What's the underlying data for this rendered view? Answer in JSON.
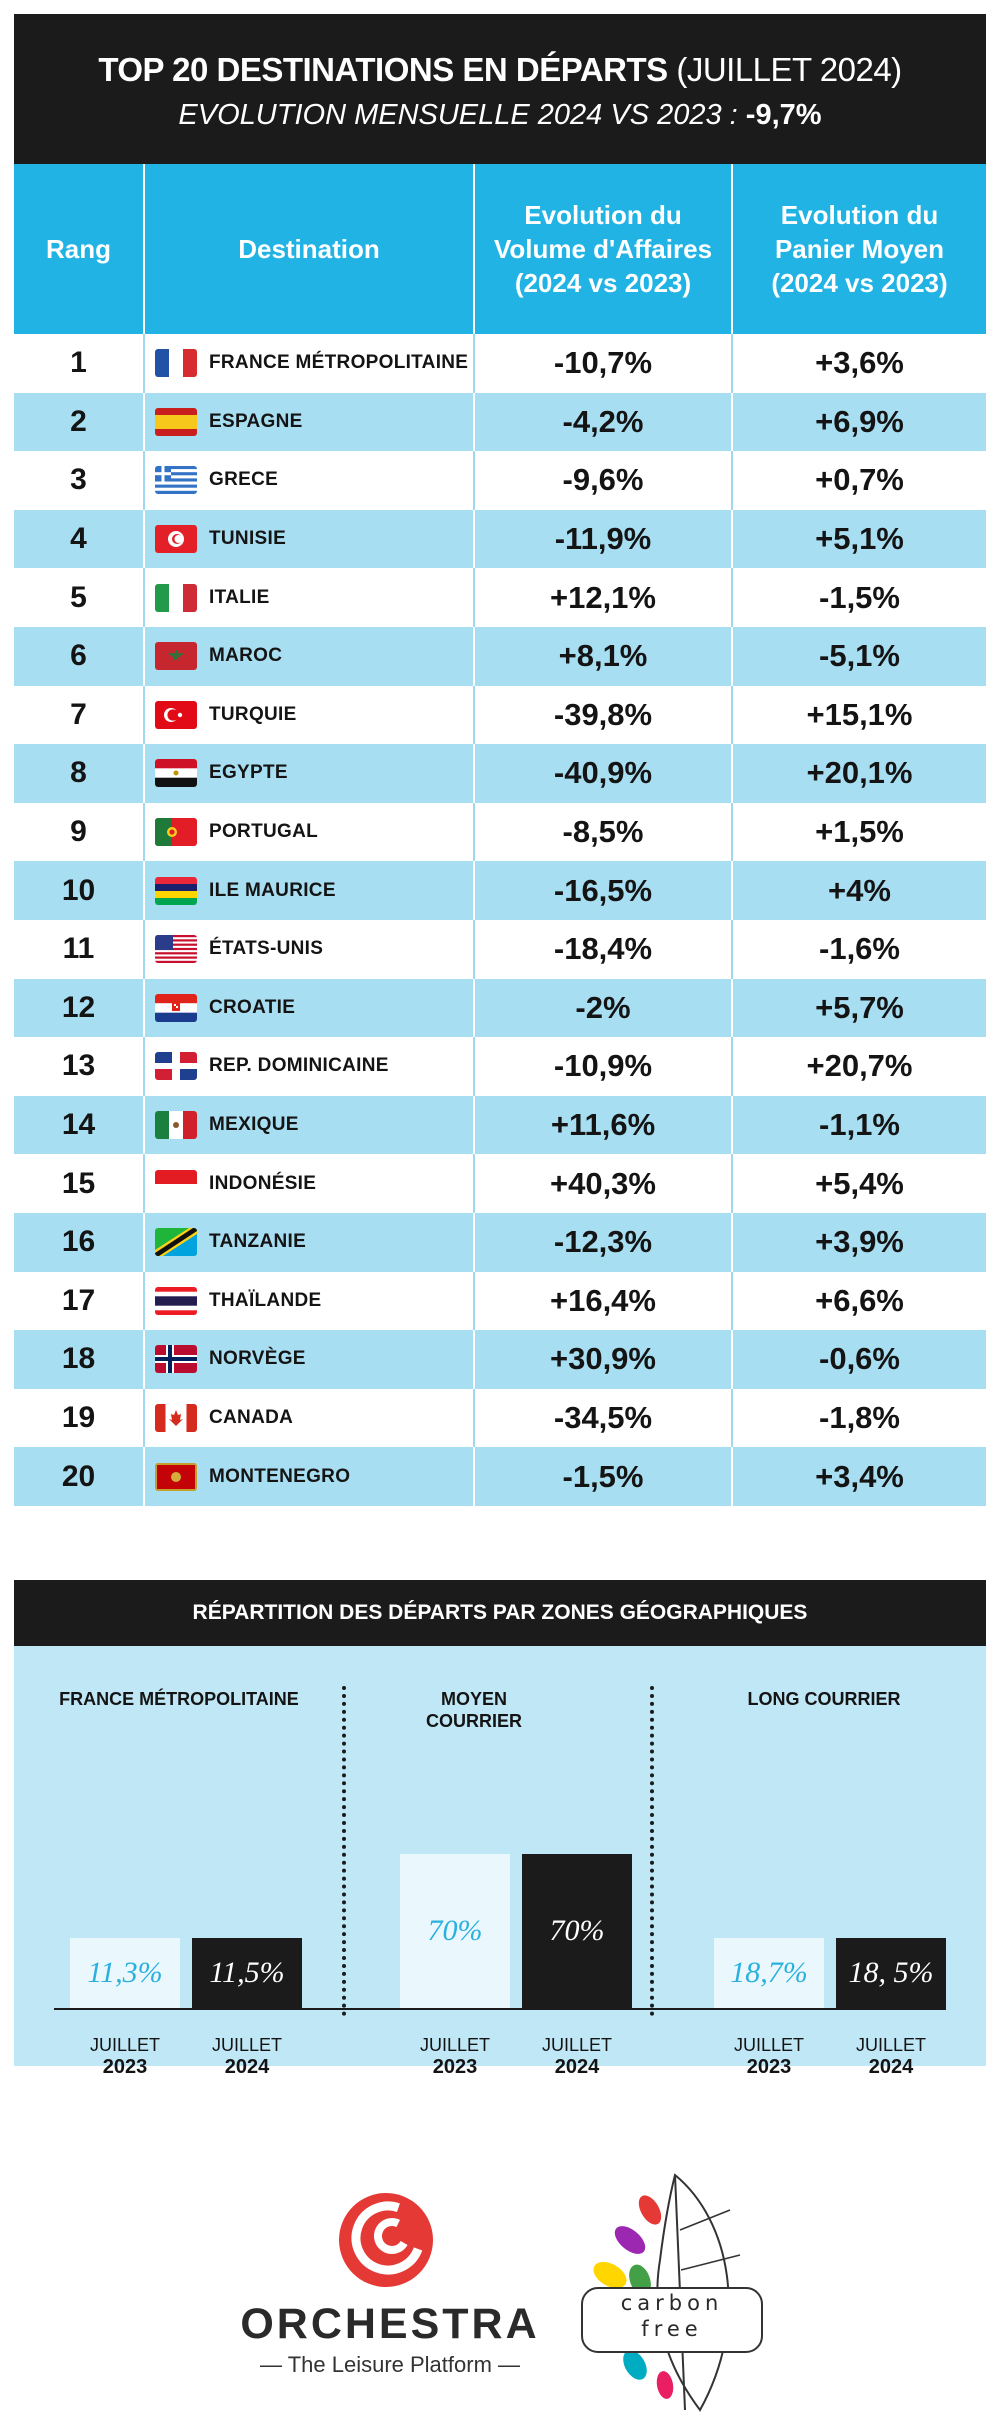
{
  "header": {
    "title_main": "TOP 20 DESTINATIONS EN DÉPARTS",
    "title_period": "(JUILLET 2024)",
    "subtitle_text": "EVOLUTION MENSUELLE 2024 VS 2023 :",
    "subtitle_value": "-9,7%"
  },
  "table": {
    "columns": [
      "Rang",
      "Destination",
      "Evolution du Volume d'Affaires (2024 vs 2023)",
      "Evolution du Panier Moyen (2024 vs 2023)"
    ],
    "rows": [
      {
        "rank": "1",
        "destination": "FRANCE MÉTROPOLITAINE",
        "flag": "france-flag",
        "volume": "-10,7%",
        "panier": "+3,6%"
      },
      {
        "rank": "2",
        "destination": "ESPAGNE",
        "flag": "spain-flag",
        "volume": "-4,2%",
        "panier": "+6,9%"
      },
      {
        "rank": "3",
        "destination": "GRECE",
        "flag": "greece-flag",
        "volume": "-9,6%",
        "panier": "+0,7%"
      },
      {
        "rank": "4",
        "destination": "TUNISIE",
        "flag": "tunisia-flag",
        "volume": "-11,9%",
        "panier": "+5,1%"
      },
      {
        "rank": "5",
        "destination": "ITALIE",
        "flag": "italy-flag",
        "volume": "+12,1%",
        "panier": "-1,5%"
      },
      {
        "rank": "6",
        "destination": "MAROC",
        "flag": "morocco-flag",
        "volume": "+8,1%",
        "panier": "-5,1%"
      },
      {
        "rank": "7",
        "destination": "TURQUIE",
        "flag": "turkey-flag",
        "volume": "-39,8%",
        "panier": "+15,1%"
      },
      {
        "rank": "8",
        "destination": "EGYPTE",
        "flag": "egypt-flag",
        "volume": "-40,9%",
        "panier": "+20,1%"
      },
      {
        "rank": "9",
        "destination": "PORTUGAL",
        "flag": "portugal-flag",
        "volume": "-8,5%",
        "panier": "+1,5%"
      },
      {
        "rank": "10",
        "destination": "ILE MAURICE",
        "flag": "mauritius-flag",
        "volume": "-16,5%",
        "panier": "+4%"
      },
      {
        "rank": "11",
        "destination": "ÉTATS-UNIS",
        "flag": "usa-flag",
        "volume": "-18,4%",
        "panier": "-1,6%"
      },
      {
        "rank": "12",
        "destination": "CROATIE",
        "flag": "croatia-flag",
        "volume": "-2%",
        "panier": "+5,7%"
      },
      {
        "rank": "13",
        "destination": "REP. DOMINICAINE",
        "flag": "dominican-republic-flag",
        "volume": "-10,9%",
        "panier": "+20,7%"
      },
      {
        "rank": "14",
        "destination": "MEXIQUE",
        "flag": "mexico-flag",
        "volume": "+11,6%",
        "panier": "-1,1%"
      },
      {
        "rank": "15",
        "destination": "INDONÉSIE",
        "flag": "indonesia-flag",
        "volume": "+40,3%",
        "panier": "+5,4%"
      },
      {
        "rank": "16",
        "destination": "TANZANIE",
        "flag": "tanzania-flag",
        "volume": "-12,3%",
        "panier": "+3,9%"
      },
      {
        "rank": "17",
        "destination": "THAÏLANDE",
        "flag": "thailand-flag",
        "volume": "+16,4%",
        "panier": "+6,6%"
      },
      {
        "rank": "18",
        "destination": "NORVÈGE",
        "flag": "norway-flag",
        "volume": "+30,9%",
        "panier": "-0,6%"
      },
      {
        "rank": "19",
        "destination": "CANADA",
        "flag": "canada-flag",
        "volume": "-34,5%",
        "panier": "-1,8%"
      },
      {
        "rank": "20",
        "destination": "MONTENEGRO",
        "flag": "montenegro-flag",
        "volume": "-1,5%",
        "panier": "+3,4%"
      }
    ]
  },
  "chart_data": {
    "type": "bar",
    "title": "RÉPARTITION DES DÉPARTS PAR ZONES GÉOGRAPHIQUES",
    "categories": [
      "FRANCE MÉTROPOLITAINE",
      "MOYEN COURRIER",
      "LONG COURRIER"
    ],
    "series": [
      {
        "name": "JUILLET 2023",
        "values": [
          11.3,
          70,
          18.7
        ],
        "labels": [
          "11,3%",
          "70%",
          "18,7%"
        ]
      },
      {
        "name": "JUILLET 2024",
        "values": [
          11.5,
          70,
          18.5
        ],
        "labels": [
          "11,5%",
          "70%",
          "18, 5%"
        ]
      }
    ],
    "xlabels": [
      {
        "month": "JUILLET",
        "year": "2023"
      },
      {
        "month": "JUILLET",
        "year": "2024"
      }
    ],
    "ylim": [
      0,
      100
    ],
    "grid": false,
    "colors": {
      "y2023": "#eaf8fd",
      "y2023_text": "#2ab0dd",
      "y2024": "#1c1b1b",
      "y2024_text": "#ffffff"
    }
  },
  "logos": {
    "orchestra_name": "ORCHESTRA",
    "orchestra_tagline": "— The Leisure Platform —",
    "carbon_free_line1": "carbon",
    "carbon_free_line2": "free"
  }
}
